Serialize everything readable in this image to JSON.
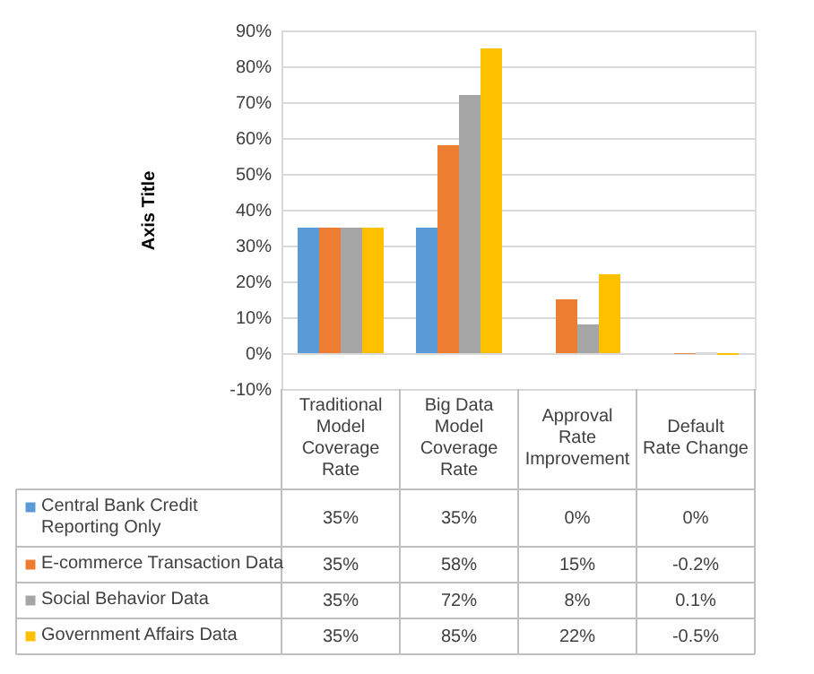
{
  "chart_data": {
    "type": "bar",
    "ylabel": "Axis Title",
    "categories": [
      "Traditional Model Coverage Rate",
      "Big Data Model Coverage Rate",
      "Approval Rate Improvement",
      "Default Rate Change"
    ],
    "series": [
      {
        "name": "Central Bank Credit Reporting Only",
        "color": "#5b9bd5",
        "values": [
          35,
          35,
          0,
          0
        ],
        "value_labels": [
          "35%",
          "35%",
          "0%",
          "0%"
        ]
      },
      {
        "name": "E-commerce Transaction Data",
        "color": "#ed7d31",
        "values": [
          35,
          58,
          15,
          -0.2
        ],
        "value_labels": [
          "35%",
          "58%",
          "15%",
          "-0.2%"
        ]
      },
      {
        "name": "Social Behavior Data",
        "color": "#a5a5a5",
        "values": [
          35,
          72,
          8,
          0.1
        ],
        "value_labels": [
          "35%",
          "72%",
          "8%",
          "0.1%"
        ]
      },
      {
        "name": "Government Affairs Data",
        "color": "#ffc000",
        "values": [
          35,
          85,
          22,
          -0.5
        ],
        "value_labels": [
          "35%",
          "85%",
          "22%",
          "-0.5%"
        ]
      }
    ],
    "ylim": [
      -10,
      90
    ],
    "yticks": [
      {
        "value": -10,
        "label": "-10%"
      },
      {
        "value": 0,
        "label": "0%"
      },
      {
        "value": 10,
        "label": "10%"
      },
      {
        "value": 20,
        "label": "20%"
      },
      {
        "value": 30,
        "label": "30%"
      },
      {
        "value": 40,
        "label": "40%"
      },
      {
        "value": 50,
        "label": "50%"
      },
      {
        "value": 60,
        "label": "60%"
      },
      {
        "value": 70,
        "label": "70%"
      },
      {
        "value": 80,
        "label": "80%"
      },
      {
        "value": 90,
        "label": "90%"
      }
    ],
    "grid": "y",
    "legend": "bottom"
  }
}
